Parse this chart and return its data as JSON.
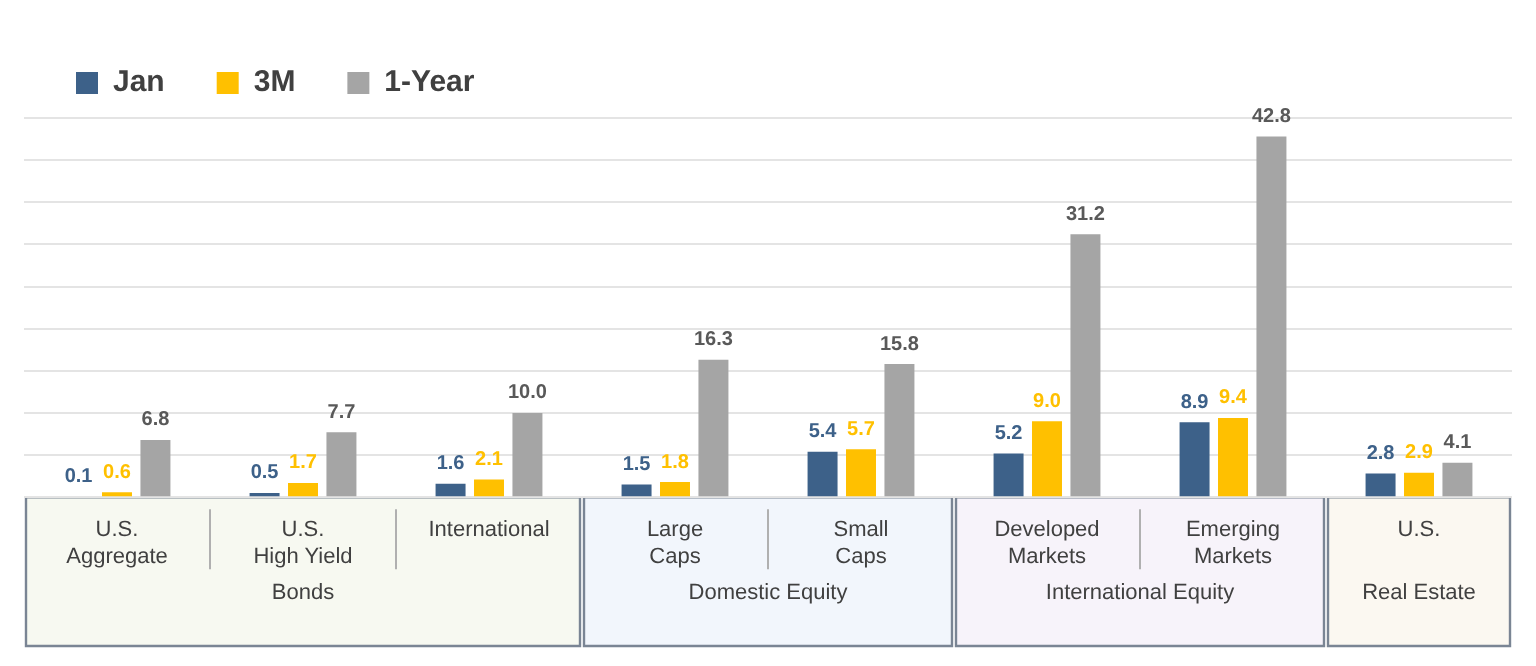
{
  "chart_data": {
    "type": "bar",
    "categories": [
      "U.S.\nAggregate",
      "U.S.\nHigh Yield",
      "International",
      "Large\nCaps",
      "Small\nCaps",
      "Developed\nMarkets",
      "Emerging\nMarkets",
      "U.S."
    ],
    "series": [
      {
        "name": "Jan",
        "color": "#3d6189",
        "values": [
          0.1,
          0.5,
          1.6,
          1.5,
          5.4,
          5.2,
          8.9,
          2.8
        ],
        "value_labels": [
          "0.1",
          "0.5",
          "1.6",
          "1.5",
          "5.4",
          "5.2",
          "8.9",
          "2.8"
        ]
      },
      {
        "name": "3M",
        "color": "#ffc000",
        "values": [
          0.6,
          1.7,
          2.1,
          1.8,
          5.7,
          9.0,
          9.4,
          2.9
        ],
        "value_labels": [
          "0.6",
          "1.7",
          "2.1",
          "1.8",
          "5.7",
          "9.0",
          "9.4",
          "2.9"
        ]
      },
      {
        "name": "1-Year",
        "color": "#a5a5a5",
        "values": [
          6.8,
          7.7,
          10.0,
          16.3,
          15.8,
          31.2,
          42.8,
          4.1
        ],
        "value_labels": [
          "6.8",
          "7.7",
          "10.0",
          "16.3",
          "15.8",
          "31.2",
          "42.8",
          "4.1"
        ]
      }
    ],
    "ylim": [
      0,
      45
    ],
    "yticks": [
      {
        "value": 0,
        "label": null
      },
      {
        "value": 5,
        "label": null
      },
      {
        "value": 10,
        "label": null
      },
      {
        "value": 15,
        "label": null
      },
      {
        "value": 20,
        "label": null
      },
      {
        "value": 25,
        "label": null
      },
      {
        "value": 30,
        "label": null
      },
      {
        "value": 35,
        "label": null
      },
      {
        "value": 40,
        "label": null
      },
      {
        "value": 45,
        "label": null
      }
    ],
    "grid": "y",
    "legend": "top left",
    "tick_labels": "x",
    "annotations": [
      "Bonds",
      "Domestic Equity",
      "International Equity",
      "Real Estate"
    ]
  }
}
